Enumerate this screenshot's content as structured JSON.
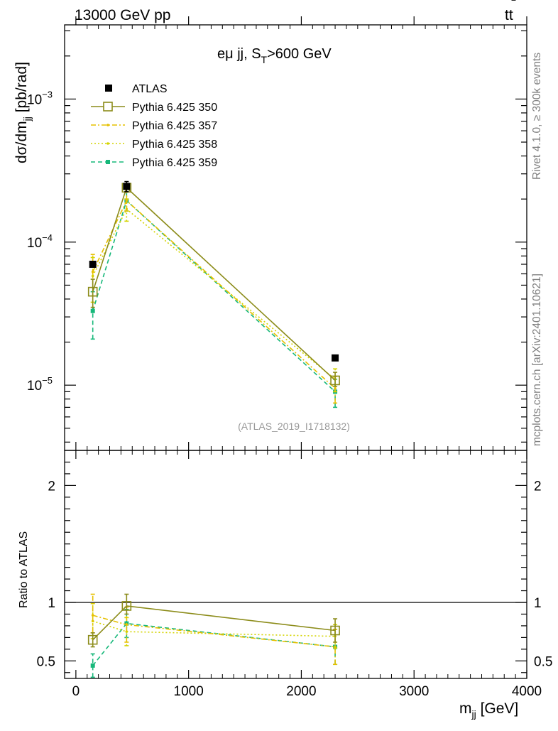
{
  "header": {
    "left": "13000 GeV pp",
    "right_main": "tt",
    "right_bar": "‾"
  },
  "side": {
    "rivet": "Rivet 4.1.0, ≥ 300k events",
    "mcplots": "mcplots.cern.ch [arXiv:2401.10621]"
  },
  "plot_title": {
    "main": "eμ jj, S",
    "sub": "T",
    "tail": ">600 GeV"
  },
  "watermark": "(ATLAS_2019_I1718132)",
  "ylabel_main": {
    "base": "dσ/dm",
    "sub": "jj",
    "tail": " [pb/rad]"
  },
  "ylabel_ratio": "Ratio to ATLAS",
  "xlabel": {
    "base": "m",
    "sub": "jj",
    "tail": " [GeV]"
  },
  "colors": {
    "atlas": "#000000",
    "p350": "#8c8c1a",
    "p357": "#e6c000",
    "p358": "#d4d400",
    "p359": "#17b87a"
  },
  "chart_data": {
    "type": "scatter",
    "x_range": [
      -100,
      4000
    ],
    "x_ticks": [
      0,
      1000,
      2000,
      3000,
      4000
    ],
    "x_tick_labels": [
      "0",
      "1000",
      "2000",
      "3000",
      "4000"
    ],
    "main": {
      "yscale": "log",
      "ylim": [
        3.5e-06,
        0.0033
      ],
      "y_ticks": [
        1e-05,
        0.0001,
        0.001
      ],
      "y_tick_labels": [
        {
          "base": "10",
          "exp": "−5"
        },
        {
          "base": "10",
          "exp": "−4"
        },
        {
          "base": "10",
          "exp": "−3"
        }
      ]
    },
    "ratio": {
      "ylim": [
        0.35,
        2.3
      ],
      "y_ticks": [
        0.5,
        1,
        2
      ],
      "y_tick_labels": [
        "0.5",
        "1",
        "2"
      ],
      "reference": 1.0
    },
    "legend": {
      "position": "top-left",
      "entries": [
        "ATLAS",
        "Pythia 6.425 350",
        "Pythia 6.425 357",
        "Pythia 6.425 358",
        "Pythia 6.425 359"
      ]
    },
    "series": [
      {
        "name": "ATLAS",
        "style": "data",
        "color": "#000000",
        "x": [
          150,
          450,
          2300
        ],
        "y": [
          7e-05,
          0.000245,
          1.55e-05
        ],
        "yerr": [
          [
            3e-06,
            2e-05,
            5e-07
          ],
          [
            3e-06,
            2e-05,
            5e-07
          ]
        ],
        "ratio": [
          1.0,
          1.0,
          1.0
        ],
        "ratio_err": [
          [
            0,
            0,
            0
          ],
          [
            0,
            0,
            0
          ]
        ]
      },
      {
        "name": "Pythia 6.425 350",
        "style": "solid-open-square",
        "color": "#8c8c1a",
        "x": [
          150,
          450,
          2300
        ],
        "y": [
          4.5e-05,
          0.00024,
          1.08e-05
        ],
        "yerr": [
          [
            1e-05,
            1.5e-05,
            1e-06
          ],
          [
            1e-05,
            1.5e-05,
            1.5e-06
          ]
        ],
        "ratio": [
          0.68,
          0.97,
          0.76
        ],
        "ratio_err": [
          [
            0.06,
            0.07,
            0.1
          ],
          [
            0.06,
            0.1,
            0.1
          ]
        ]
      },
      {
        "name": "Pythia 6.425 357",
        "style": "dashdot",
        "color": "#e6c000",
        "x": [
          150,
          450,
          2300
        ],
        "y": [
          6.2e-05,
          0.000195,
          9.5e-06
        ],
        "yerr": [
          [
            2e-05,
            3e-05,
            2e-06
          ],
          [
            2e-05,
            3e-05,
            2e-06
          ]
        ],
        "ratio": [
          0.89,
          0.81,
          0.62
        ],
        "ratio_err": [
          [
            0.15,
            0.15,
            0.15
          ],
          [
            0.18,
            0.15,
            0.15
          ]
        ]
      },
      {
        "name": "Pythia 6.425 358",
        "style": "dotted",
        "color": "#d4d400",
        "x": [
          150,
          450,
          2300
        ],
        "y": [
          5.8e-05,
          0.00017,
          1.1e-05
        ],
        "yerr": [
          [
            2e-05,
            3e-05,
            2e-06
          ],
          [
            2e-05,
            3e-05,
            2e-06
          ]
        ],
        "ratio": [
          0.84,
          0.75,
          0.71
        ],
        "ratio_err": [
          [
            0.15,
            0.12,
            0.1
          ],
          [
            0.15,
            0.12,
            0.1
          ]
        ]
      },
      {
        "name": "Pythia 6.425 359",
        "style": "dashed-filled-square",
        "color": "#17b87a",
        "x": [
          150,
          450,
          2300
        ],
        "y": [
          3.3e-05,
          0.000195,
          9e-06
        ],
        "yerr": [
          [
            1.2e-05,
            3e-05,
            2e-06
          ],
          [
            1.2e-05,
            3e-05,
            2e-06
          ]
        ],
        "ratio": [
          0.46,
          0.82,
          0.62
        ],
        "ratio_err": [
          [
            0.1,
            0.12,
            0.15
          ],
          [
            0.1,
            0.12,
            0.15
          ]
        ]
      }
    ]
  }
}
